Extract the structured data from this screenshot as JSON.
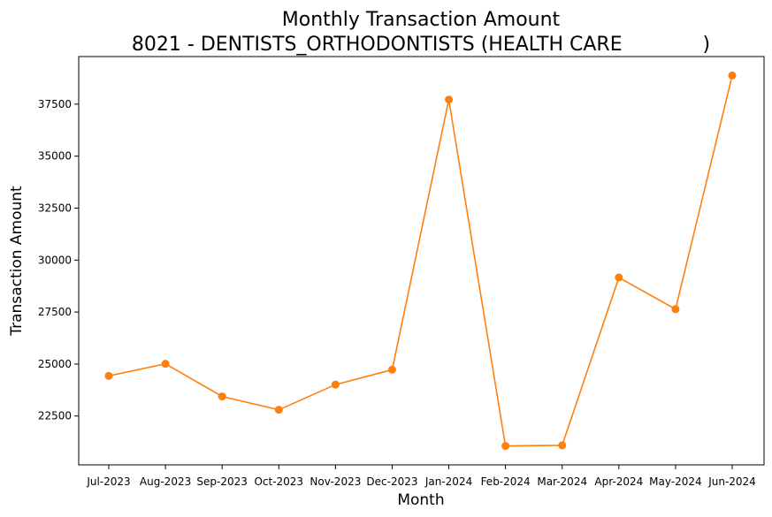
{
  "chart_data": {
    "type": "line",
    "title": "Monthly Transaction Amount",
    "subtitle": "8021 - DENTISTS_ORTHODONTISTS (HEALTH CARE             )",
    "xlabel": "Month",
    "ylabel": "Transaction Amount",
    "categories": [
      "Jul-2023",
      "Aug-2023",
      "Sep-2023",
      "Oct-2023",
      "Nov-2023",
      "Dec-2023",
      "Jan-2024",
      "Feb-2024",
      "Mar-2024",
      "Apr-2024",
      "May-2024",
      "Jun-2024"
    ],
    "series": [
      {
        "values": [
          24430,
          25010,
          23440,
          22800,
          24010,
          24730,
          37720,
          21060,
          21090,
          29160,
          27640,
          38880
        ],
        "color": "#ff7f0e",
        "marker": "circle"
      }
    ],
    "yticks": [
      22500,
      25000,
      27500,
      30000,
      32500,
      35000,
      37500
    ],
    "ylim": [
      20150,
      39790
    ],
    "grid": false,
    "legend": "none"
  }
}
